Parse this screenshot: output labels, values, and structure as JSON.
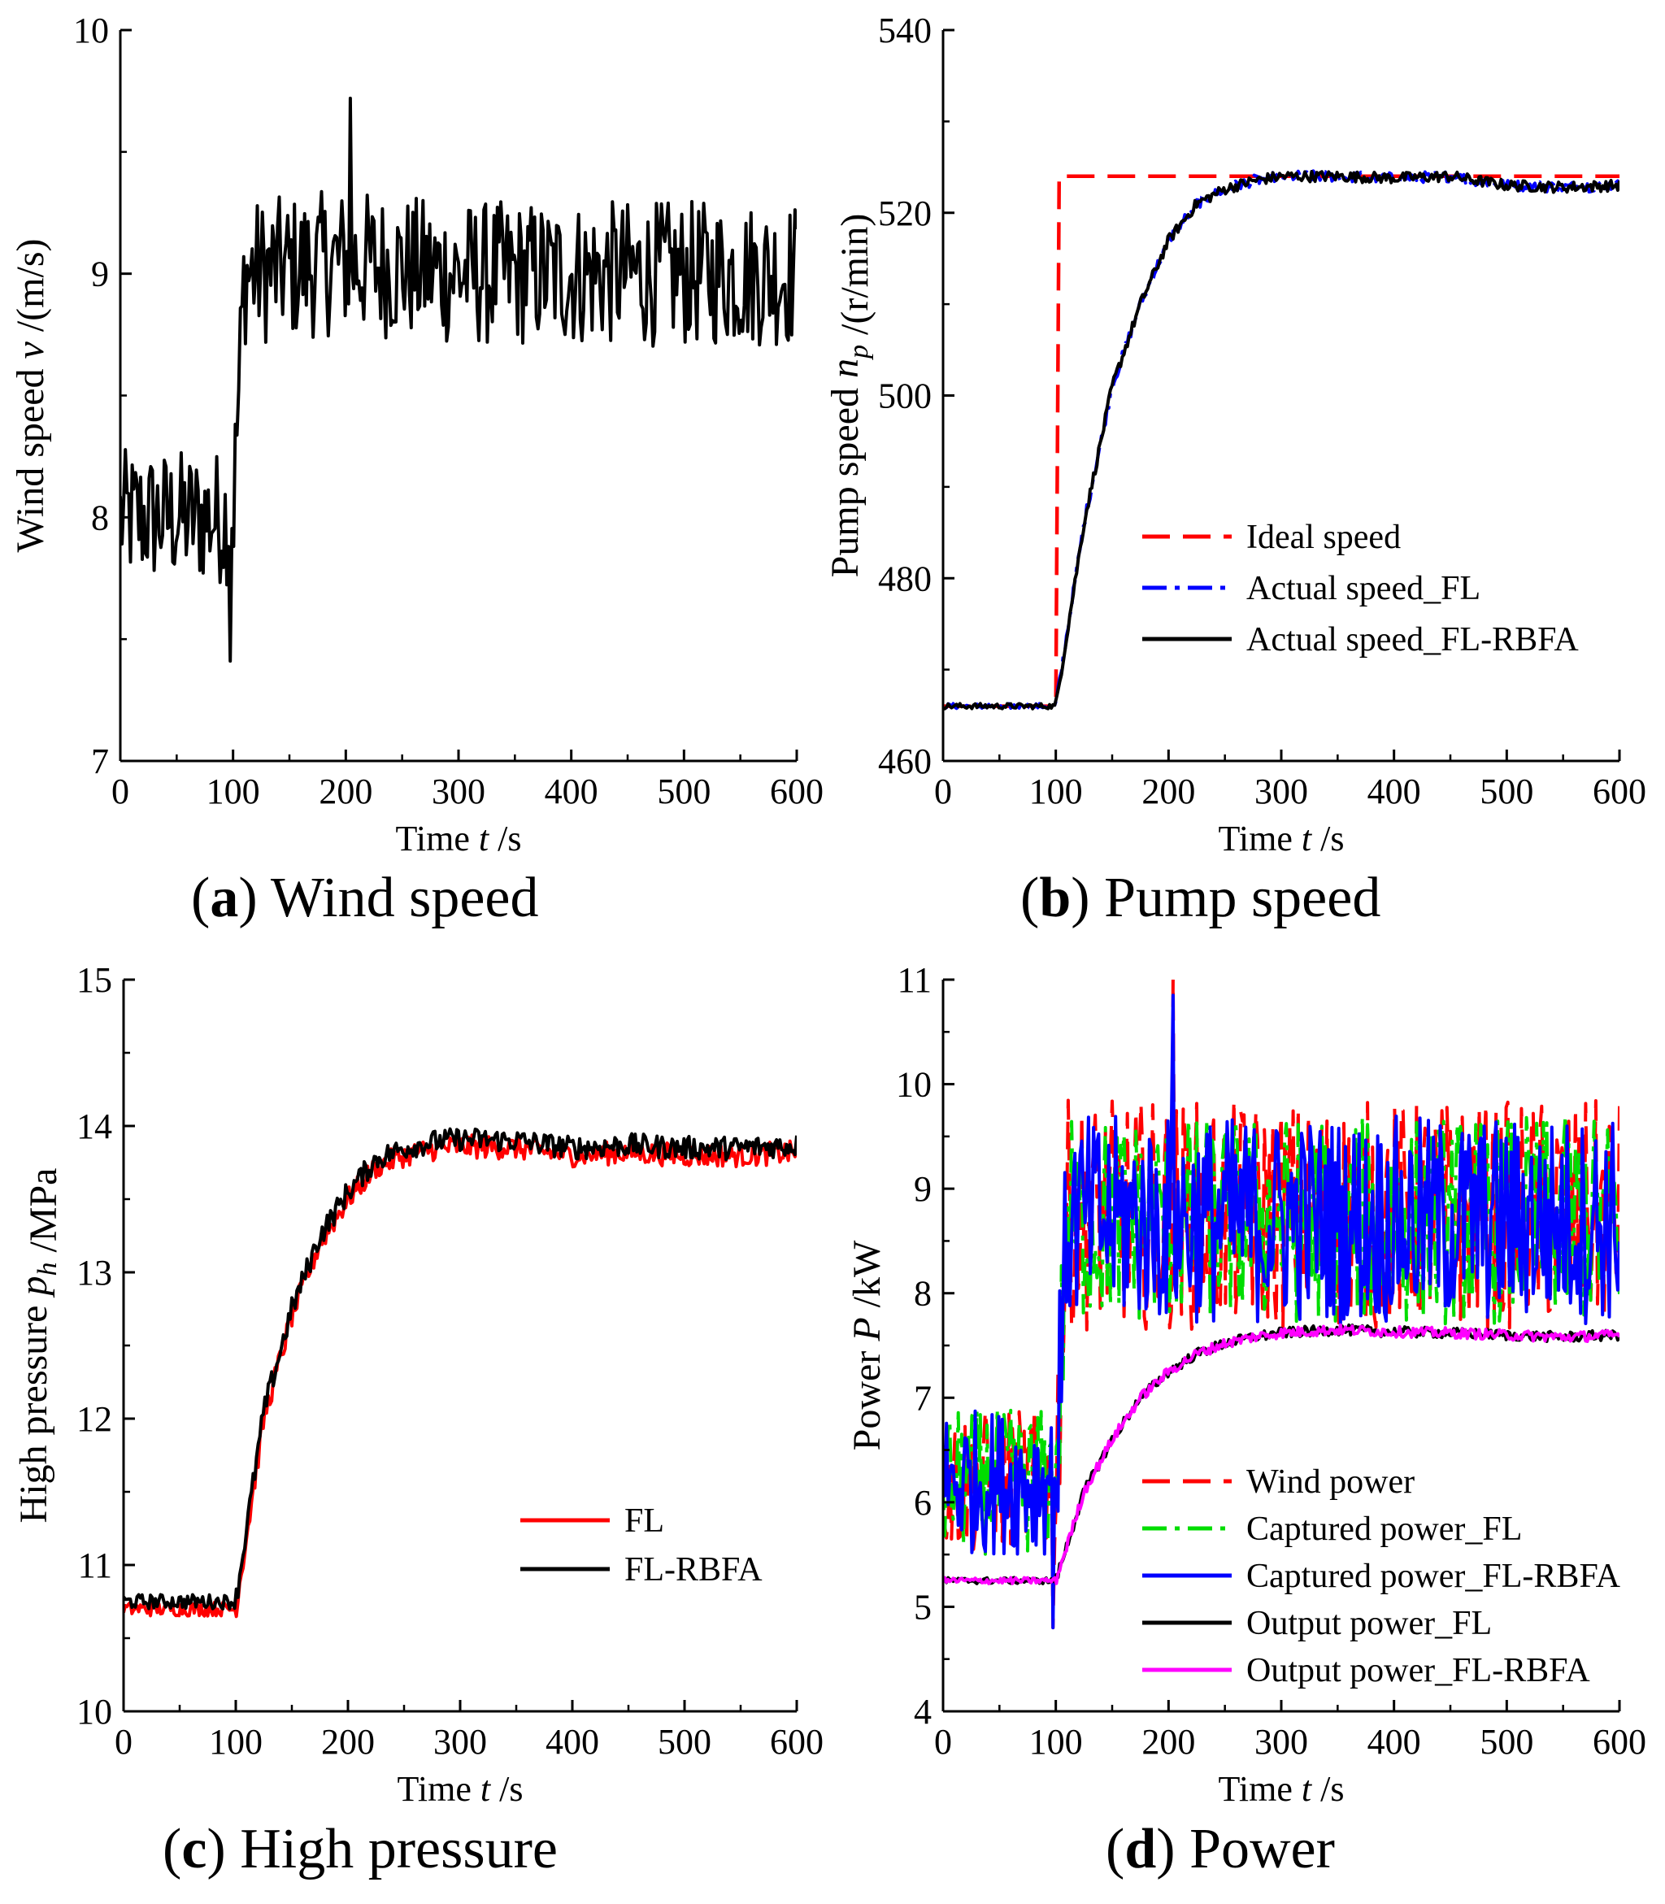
{
  "figure": {
    "captions": [
      {
        "letter": "a",
        "text": "Wind speed"
      },
      {
        "letter": "b",
        "text": "Pump speed"
      },
      {
        "letter": "c",
        "text": "High pressure"
      },
      {
        "letter": "d",
        "text": "Power"
      }
    ]
  },
  "chart_data": [
    {
      "id": "a",
      "type": "line",
      "title": "(a) Wind speed",
      "xlabel": "Time t /s",
      "ylabel": "Wind speed v /(m/s)",
      "xlim": [
        0,
        600
      ],
      "ylim": [
        7,
        10
      ],
      "xticks": [
        0,
        100,
        200,
        300,
        400,
        500,
        600
      ],
      "yticks": [
        7,
        8,
        9,
        10
      ],
      "legend": null,
      "series": [
        {
          "name": "Wind speed",
          "color": "#000000",
          "style": "solid",
          "noisy": true,
          "x": [
            0,
            100,
            110,
            200,
            300,
            400,
            500,
            600
          ],
          "y": [
            8.0,
            8.0,
            9.0,
            9.05,
            9.0,
            9.0,
            9.0,
            9.0
          ],
          "noise_amplitude": [
            0.28,
            0.3
          ],
          "range_min": 7.41,
          "range_max": 9.72
        }
      ]
    },
    {
      "id": "b",
      "type": "line",
      "title": "(b) Pump speed",
      "xlabel": "Time t /s",
      "ylabel": "Pump speed n_p /(r/min)",
      "xlim": [
        0,
        600
      ],
      "ylim": [
        460,
        540
      ],
      "xticks": [
        0,
        100,
        200,
        300,
        400,
        500,
        600
      ],
      "yticks": [
        460,
        480,
        500,
        520,
        540
      ],
      "legend": "center-right",
      "series": [
        {
          "name": "Ideal speed",
          "color": "#ff0000",
          "style": "dashed",
          "x": [
            0,
            100,
            103,
            600
          ],
          "y": [
            466,
            466,
            524,
            524
          ]
        },
        {
          "name": "Actual speed_FL",
          "color": "#0000ff",
          "style": "dashdot",
          "noisy": true,
          "x": [
            0,
            100,
            125,
            150,
            175,
            200,
            225,
            250,
            275,
            300,
            350,
            400,
            450,
            500,
            550,
            600
          ],
          "y": [
            466,
            466,
            486,
            501,
            510,
            517,
            521,
            522.6,
            523.5,
            524,
            524,
            523.8,
            524,
            523,
            522.8,
            523
          ],
          "noise_amplitude": [
            0.3,
            0.6
          ]
        },
        {
          "name": "Actual speed_FL-RBFA",
          "color": "#000000",
          "style": "solid",
          "noisy": true,
          "x": [
            0,
            100,
            125,
            150,
            175,
            200,
            225,
            250,
            275,
            300,
            350,
            400,
            450,
            500,
            550,
            600
          ],
          "y": [
            466,
            466,
            486,
            501,
            510,
            517,
            521,
            522.6,
            523.5,
            524,
            524,
            523.8,
            524,
            523,
            522.8,
            523
          ],
          "noise_amplitude": [
            0.3,
            0.6
          ]
        }
      ]
    },
    {
      "id": "c",
      "type": "line",
      "title": "(c) High pressure",
      "xlabel": "Time t /s",
      "ylabel": "High pressure p_h /MPa",
      "xlim": [
        0,
        600
      ],
      "ylim": [
        10,
        15
      ],
      "xticks": [
        0,
        100,
        200,
        300,
        400,
        500,
        600
      ],
      "yticks": [
        10,
        11,
        12,
        13,
        14,
        15
      ],
      "legend": "center-right",
      "series": [
        {
          "name": "FL",
          "color": "#ff0000",
          "style": "solid",
          "noisy": true,
          "x": [
            0,
            100,
            125,
            150,
            175,
            200,
            225,
            250,
            275,
            300,
            350,
            400,
            450,
            500,
            550,
            600
          ],
          "y": [
            10.7,
            10.7,
            12.0,
            12.7,
            13.2,
            13.5,
            13.72,
            13.8,
            13.84,
            13.86,
            13.85,
            13.8,
            13.82,
            13.8,
            13.8,
            13.82
          ],
          "noise_amplitude": [
            0.05,
            0.08
          ]
        },
        {
          "name": "FL-RBFA",
          "color": "#000000",
          "style": "solid",
          "noisy": true,
          "x": [
            0,
            100,
            125,
            150,
            175,
            200,
            225,
            250,
            275,
            300,
            350,
            400,
            450,
            500,
            550,
            600
          ],
          "y": [
            10.75,
            10.75,
            12.05,
            12.75,
            13.25,
            13.55,
            13.77,
            13.85,
            13.89,
            13.91,
            13.9,
            13.85,
            13.87,
            13.85,
            13.85,
            13.87
          ],
          "noise_amplitude": [
            0.05,
            0.08
          ]
        }
      ]
    },
    {
      "id": "d",
      "type": "line",
      "title": "(d) Power",
      "xlabel": "Time t /s",
      "ylabel": "Power P /kW",
      "xlim": [
        0,
        600
      ],
      "ylim": [
        4,
        11
      ],
      "xticks": [
        0,
        100,
        200,
        300,
        400,
        500,
        600
      ],
      "yticks": [
        4,
        5,
        6,
        7,
        8,
        9,
        10,
        11
      ],
      "legend": "bottom-right",
      "series": [
        {
          "name": "Wind power",
          "color": "#ff0000",
          "style": "dashed",
          "noisy": true,
          "x": [
            0,
            100,
            110,
            600
          ],
          "y": [
            6.2,
            6.2,
            8.75,
            8.75
          ],
          "noise_amplitude": [
            0.7,
            1.1
          ],
          "range_min": 4.8,
          "range_max": 11.0
        },
        {
          "name": "Captured power_FL",
          "color": "#00dd00",
          "style": "dashdot",
          "noisy": true,
          "x": [
            0,
            100,
            110,
            600
          ],
          "y": [
            6.2,
            6.2,
            8.7,
            8.7
          ],
          "noise_amplitude": [
            0.7,
            1.0
          ]
        },
        {
          "name": "Captured power_FL-RBFA",
          "color": "#0000ff",
          "style": "solid",
          "noisy": true,
          "x": [
            0,
            100,
            110,
            600
          ],
          "y": [
            6.2,
            6.2,
            8.7,
            8.7
          ],
          "noise_amplitude": [
            0.7,
            1.0
          ],
          "range_min": 4.8,
          "range_max": 10.85
        },
        {
          "name": "Output power_FL",
          "color": "#000000",
          "style": "solid",
          "noisy": true,
          "x": [
            0,
            100,
            125,
            150,
            175,
            200,
            225,
            250,
            275,
            300,
            350,
            400,
            450,
            500,
            550,
            600
          ],
          "y": [
            5.25,
            5.25,
            6.1,
            6.6,
            7.0,
            7.25,
            7.42,
            7.52,
            7.58,
            7.62,
            7.65,
            7.63,
            7.62,
            7.6,
            7.58,
            7.6
          ],
          "noise_amplitude": [
            0.03,
            0.05
          ]
        },
        {
          "name": "Output power_FL-RBFA",
          "color": "#ff00ff",
          "style": "solid",
          "noisy": true,
          "x": [
            0,
            100,
            125,
            150,
            175,
            200,
            225,
            250,
            275,
            300,
            350,
            400,
            450,
            500,
            550,
            600
          ],
          "y": [
            5.25,
            5.25,
            6.1,
            6.6,
            7.0,
            7.25,
            7.42,
            7.52,
            7.58,
            7.62,
            7.65,
            7.63,
            7.62,
            7.6,
            7.58,
            7.6
          ],
          "noise_amplitude": [
            0.03,
            0.05
          ]
        }
      ]
    }
  ]
}
